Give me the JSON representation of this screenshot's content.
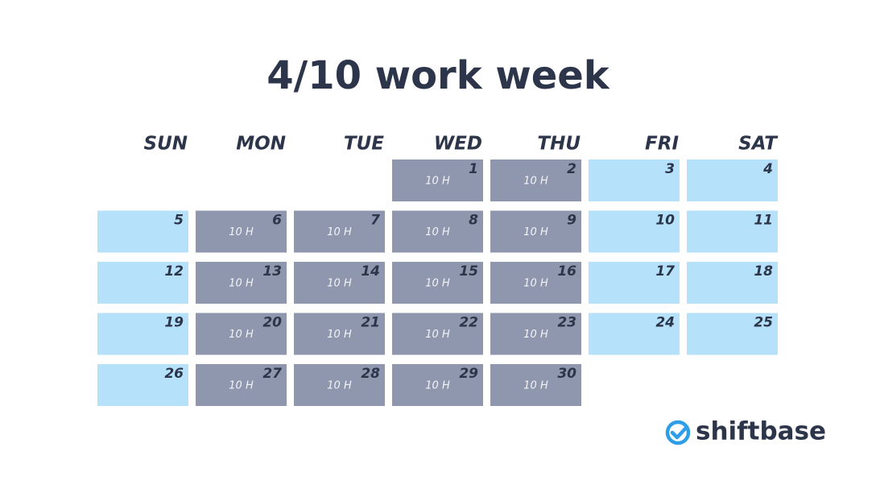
{
  "title": "4/10 work week",
  "calendar": {
    "weekdays": [
      "SUN",
      "MON",
      "TUE",
      "WED",
      "THU",
      "FRI",
      "SAT"
    ],
    "weeks": [
      [
        null,
        null,
        null,
        {
          "day": 1,
          "hours": "10 H"
        },
        {
          "day": 2,
          "hours": "10 H"
        },
        {
          "day": 3
        },
        {
          "day": 4
        }
      ],
      [
        {
          "day": 5
        },
        {
          "day": 6,
          "hours": "10 H"
        },
        {
          "day": 7,
          "hours": "10 H"
        },
        {
          "day": 8,
          "hours": "10 H"
        },
        {
          "day": 9,
          "hours": "10 H"
        },
        {
          "day": 10
        },
        {
          "day": 11
        }
      ],
      [
        {
          "day": 12
        },
        {
          "day": 13,
          "hours": "10 H"
        },
        {
          "day": 14,
          "hours": "10 H"
        },
        {
          "day": 15,
          "hours": "10 H"
        },
        {
          "day": 16,
          "hours": "10 H"
        },
        {
          "day": 17
        },
        {
          "day": 18
        }
      ],
      [
        {
          "day": 19
        },
        {
          "day": 20,
          "hours": "10 H"
        },
        {
          "day": 21,
          "hours": "10 H"
        },
        {
          "day": 22,
          "hours": "10 H"
        },
        {
          "day": 23,
          "hours": "10 H"
        },
        {
          "day": 24
        },
        {
          "day": 25
        }
      ],
      [
        {
          "day": 26
        },
        {
          "day": 27,
          "hours": "10 H"
        },
        {
          "day": 28,
          "hours": "10 H"
        },
        {
          "day": 29,
          "hours": "10 H"
        },
        {
          "day": 30,
          "hours": "10 H"
        },
        null,
        null
      ]
    ]
  },
  "brand": "shiftbase"
}
